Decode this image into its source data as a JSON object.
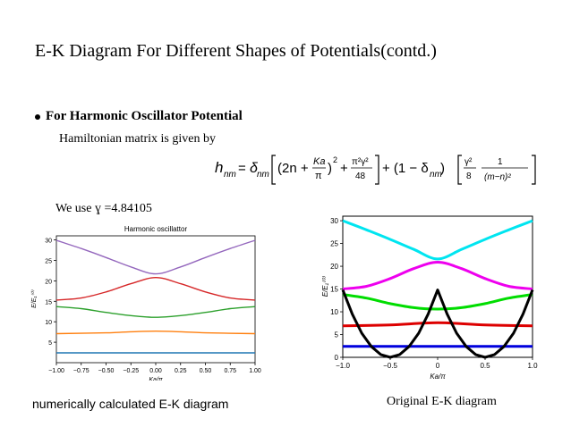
{
  "slide": {
    "title": "E-K Diagram For Different Shapes of Potentials(contd.)",
    "bullet": "For Harmonic Oscillator Potential",
    "hamiltonian_text": "Hamiltonian matrix is given by",
    "equation": {
      "lhs": "h",
      "lhs_sub": "nm",
      "delta": "δ",
      "t_2n": "(2n +",
      "t_ka": "Ka",
      "t_pi": "π",
      "t_num": "π²γ²",
      "t_den": "48",
      "t_mid": "+ (1 − δ",
      "t_gam": "γ²",
      "t_8": "8",
      "t_one": "1",
      "t_mn": "(m−n)²",
      "eq_sign": "=",
      "close_paren": ")",
      "sq": "2",
      "plus": "+",
      "close_delta": ")"
    },
    "gamma_text": "We use ɣ =4.84105",
    "caption_left": "numerically calculated  E-K diagram",
    "caption_right": "Original E-K diagram"
  },
  "chart_data": [
    {
      "type": "line",
      "title": "Harmonic oscillattor",
      "xlabel": "Ka/π",
      "ylabel": "E/E₁⁽⁰⁾",
      "xlim": [
        -1.0,
        1.0
      ],
      "ylim": [
        0,
        31
      ],
      "xticks": [
        "−1.00",
        "−0.75",
        "−0.50",
        "−0.25",
        "0.00",
        "0.25",
        "0.50",
        "0.75",
        "1.00"
      ],
      "xtick_values": [
        -1.0,
        -0.75,
        -0.5,
        -0.25,
        0.0,
        0.25,
        0.5,
        0.75,
        1.0
      ],
      "yticks": [
        "5",
        "10",
        "15",
        "20",
        "25",
        "30"
      ],
      "ytick_values": [
        5,
        10,
        15,
        20,
        25,
        30
      ],
      "grid": false,
      "series": [
        {
          "color": "#1f77b4",
          "x": [
            -1,
            -0.5,
            0,
            0.5,
            1
          ],
          "y": [
            2.4,
            2.4,
            2.4,
            2.4,
            2.4
          ]
        },
        {
          "color": "#ff7f0e",
          "x": [
            -1,
            -0.5,
            0,
            0.5,
            1
          ],
          "y": [
            7.1,
            7.3,
            7.7,
            7.3,
            7.1
          ]
        },
        {
          "color": "#2ca02c",
          "x": [
            -1,
            -0.75,
            -0.5,
            -0.25,
            0,
            0.25,
            0.5,
            0.75,
            1
          ],
          "y": [
            13.7,
            13.2,
            12.3,
            11.5,
            11.1,
            11.5,
            12.3,
            13.2,
            13.7
          ]
        },
        {
          "color": "#d62728",
          "x": [
            -1,
            -0.75,
            -0.5,
            -0.25,
            0,
            0.25,
            0.5,
            0.75,
            1
          ],
          "y": [
            15.3,
            15.8,
            17.3,
            19.3,
            20.8,
            19.3,
            17.3,
            15.8,
            15.3
          ]
        },
        {
          "color": "#9467bd",
          "x": [
            -1,
            -0.75,
            -0.5,
            -0.25,
            0,
            0.25,
            0.5,
            0.75,
            1
          ],
          "y": [
            29.9,
            27.9,
            25.7,
            23.4,
            21.7,
            23.4,
            25.7,
            27.9,
            29.9
          ]
        }
      ]
    },
    {
      "type": "line",
      "title": "",
      "xlabel": "Ka/π",
      "ylabel": "E/E₁⁽⁰⁾",
      "xlim": [
        -1.0,
        1.0
      ],
      "ylim": [
        0,
        31
      ],
      "xticks": [
        "−1.0",
        "−0.5",
        "0",
        "0.5",
        "1.0"
      ],
      "xtick_values": [
        -1.0,
        -0.5,
        0,
        0.5,
        1.0
      ],
      "yticks": [
        "0",
        "5",
        "10",
        "15",
        "20",
        "25",
        "30"
      ],
      "ytick_values": [
        0,
        5,
        10,
        15,
        20,
        25,
        30
      ],
      "grid": false,
      "series": [
        {
          "color": "#0000dd",
          "x": [
            -1,
            -0.5,
            0,
            0.5,
            1
          ],
          "y": [
            2.4,
            2.4,
            2.4,
            2.4,
            2.4
          ]
        },
        {
          "color": "#dd0000",
          "x": [
            -1,
            -0.5,
            0,
            0.5,
            1
          ],
          "y": [
            6.9,
            7.1,
            7.6,
            7.1,
            6.9
          ]
        },
        {
          "color": "#00dd00",
          "x": [
            -1,
            -0.75,
            -0.5,
            -0.25,
            0,
            0.25,
            0.5,
            0.75,
            1
          ],
          "y": [
            13.8,
            13.0,
            11.8,
            10.9,
            10.6,
            10.9,
            11.8,
            13.0,
            13.8
          ]
        },
        {
          "color": "#ee00ee",
          "x": [
            -1,
            -0.75,
            -0.5,
            -0.25,
            0,
            0.25,
            0.5,
            0.75,
            1
          ],
          "y": [
            15.0,
            15.6,
            17.3,
            19.5,
            20.9,
            19.5,
            17.3,
            15.6,
            15.0
          ]
        },
        {
          "color": "#00e5f0",
          "x": [
            -1,
            -0.75,
            -0.5,
            -0.25,
            0,
            0.25,
            0.5,
            0.75,
            1
          ],
          "y": [
            30.0,
            28.0,
            25.9,
            23.7,
            21.6,
            23.7,
            25.9,
            28.0,
            30.0
          ]
        },
        {
          "color": "#000000",
          "x": [
            -1,
            -0.9,
            -0.8,
            -0.7,
            -0.6,
            -0.5,
            -0.4,
            -0.3,
            -0.2,
            -0.1,
            0,
            0.1,
            0.2,
            0.3,
            0.4,
            0.5,
            0.6,
            0.7,
            0.8,
            0.9,
            1
          ],
          "y": [
            14.8,
            9.5,
            5.3,
            2.4,
            0.6,
            0,
            0.6,
            2.4,
            5.3,
            9.5,
            14.8,
            9.5,
            5.3,
            2.4,
            0.6,
            0,
            0.6,
            2.4,
            5.3,
            9.5,
            14.8
          ]
        }
      ]
    }
  ]
}
